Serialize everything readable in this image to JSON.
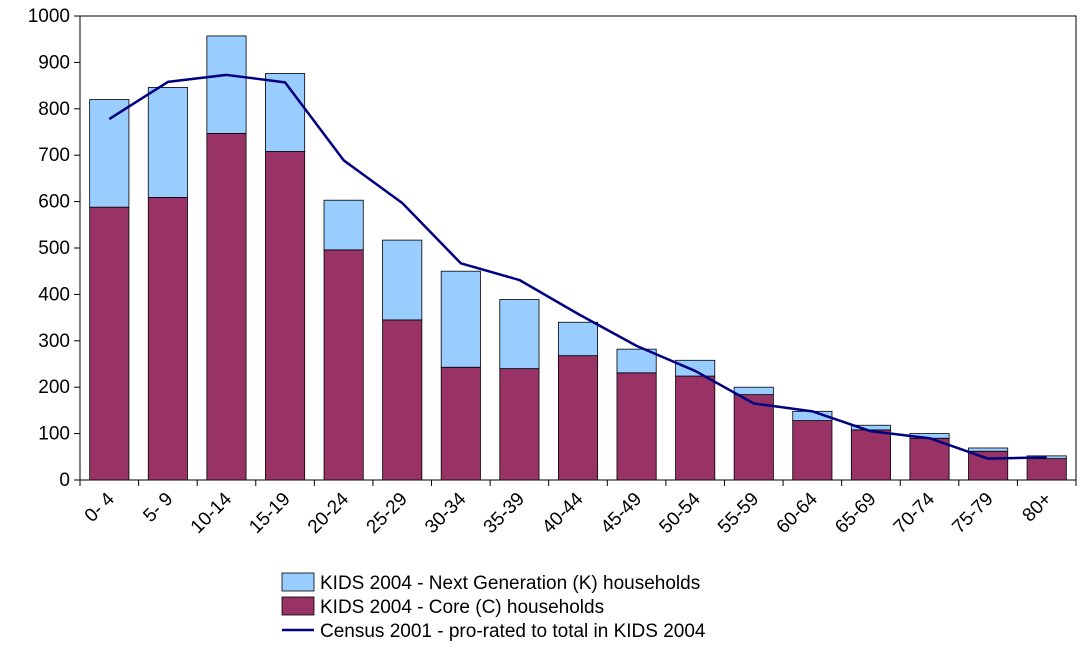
{
  "chart_data": {
    "type": "bar",
    "stacked": true,
    "categories": [
      "0- 4",
      "5- 9",
      "10-14",
      "15-19",
      "20-24",
      "25-29",
      "30-34",
      "35-39",
      "40-44",
      "45-49",
      "50-54",
      "55-59",
      "60-64",
      "65-69",
      "70-74",
      "75-79",
      "80+"
    ],
    "ylim": [
      0,
      1000
    ],
    "yticks": [
      0,
      100,
      200,
      300,
      400,
      500,
      600,
      700,
      800,
      900,
      1000
    ],
    "title": "",
    "xlabel": "",
    "ylabel": "",
    "grid": false,
    "legend_position": "bottom",
    "series": [
      {
        "name": "KIDS 2004 - Core (C) households",
        "type": "bar",
        "color": "#993366",
        "values": [
          588,
          609,
          747,
          708,
          496,
          345,
          243,
          240,
          268,
          231,
          224,
          184,
          128,
          108,
          90,
          62,
          46
        ]
      },
      {
        "name": "KIDS 2004 - Next Generation (K) households",
        "type": "bar",
        "color": "#99ccff",
        "values": [
          232,
          237,
          210,
          168,
          107,
          172,
          207,
          149,
          72,
          51,
          34,
          16,
          20,
          10,
          10,
          7,
          6
        ]
      },
      {
        "name": "Census 2001 - pro-rated to total in KIDS 2004",
        "type": "line",
        "color": "#000080",
        "values": [
          778,
          858,
          873,
          857,
          689,
          597,
          467,
          431,
          358,
          289,
          235,
          165,
          148,
          105,
          90,
          46,
          49
        ]
      }
    ],
    "legend_order": [
      "KIDS 2004 - Next Generation (K) households",
      "KIDS 2004 - Core (C) households",
      "Census 2001 - pro-rated to total in KIDS 2004"
    ]
  }
}
